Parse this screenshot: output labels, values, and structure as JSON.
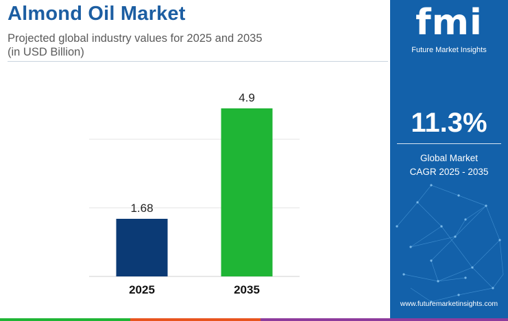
{
  "header": {
    "title": "Almond Oil Market",
    "subtitle_line1": "Projected global industry values for 2025 and 2035",
    "subtitle_line2": "(in USD Billion)"
  },
  "chart_data": {
    "type": "bar",
    "categories": [
      "2025",
      "2035"
    ],
    "values": [
      1.68,
      4.9
    ],
    "value_labels": [
      "1.68",
      "4.9"
    ],
    "bar_colors": [
      "#0b3a75",
      "#1fb535"
    ],
    "title": "",
    "xlabel": "",
    "ylabel": "",
    "ylim": [
      0,
      6
    ],
    "grid": true,
    "legend": "none"
  },
  "sidebar": {
    "logo_text": "fmi",
    "logo_subtitle": "Future Market Insights",
    "cagr_value": "11.3%",
    "cagr_label_line1": "Global Market",
    "cagr_label_line2": "CAGR 2025 - 2035",
    "website": "www.futuremarketinsights.com",
    "background_color": "#1361aa"
  },
  "footer_colors": [
    "#1fb535",
    "#e8541e",
    "#8d3b9c"
  ]
}
